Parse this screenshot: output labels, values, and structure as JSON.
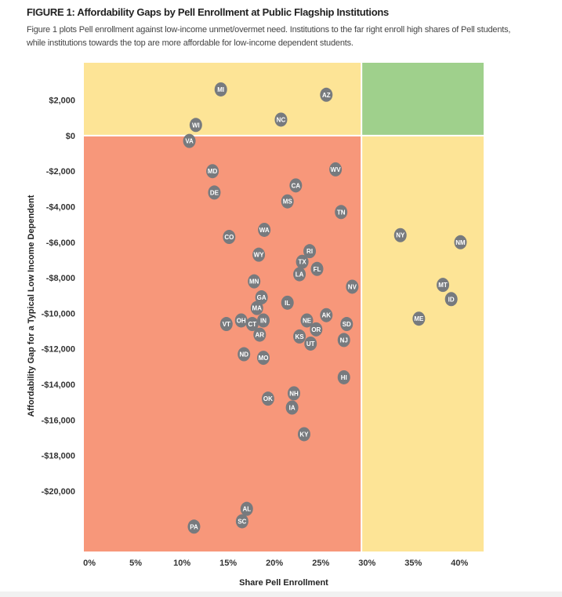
{
  "title": "FIGURE 1: Affordability Gaps by Pell Enrollment at Public Flagship Institutions",
  "subtitle": "Figure 1 plots Pell enrollment against low-income unmet/overmet need. Institutions to the far right enroll high shares of Pell students, while institutions towards the top are more affordable for low-income dependent students.",
  "chart_data": {
    "type": "scatter",
    "xlabel": "Share Pell Enrollment",
    "ylabel": "Affordability Gap for a Typical Low Income Dependent",
    "xlim": [
      -0.6,
      42.6
    ],
    "ylim": [
      -23400,
      4100
    ],
    "x_thresholds": [
      29.4
    ],
    "y_thresholds": [
      0
    ],
    "x_ticks": [
      0,
      5,
      10,
      15,
      20,
      25,
      30,
      35,
      40
    ],
    "x_tick_labels": [
      "0%",
      "5%",
      "10%",
      "15%",
      "20%",
      "25%",
      "30%",
      "35%",
      "40%"
    ],
    "y_ticks": [
      2000,
      0,
      -2000,
      -4000,
      -6000,
      -8000,
      -10000,
      -12000,
      -14000,
      -16000,
      -18000,
      -20000
    ],
    "y_tick_labels": [
      "$2,000",
      "$0",
      "-$2,000",
      "-$4,000",
      "-$6,000",
      "-$8,000",
      "-$10,000",
      "-$12,000",
      "-$14,000",
      "-$16,000",
      "-$18,000",
      "-$20,000"
    ],
    "quadrant_colors": {
      "top_left": "#fde496",
      "top_right": "#9fd08c",
      "bottom_left": "#f7977a",
      "bottom_right": "#fde496"
    },
    "point_color": "#777a7e",
    "points": [
      {
        "label": "MI",
        "x": 14.2,
        "y": 2600
      },
      {
        "label": "AZ",
        "x": 25.6,
        "y": 2300
      },
      {
        "label": "NC",
        "x": 20.7,
        "y": 900
      },
      {
        "label": "WI",
        "x": 11.5,
        "y": 600
      },
      {
        "label": "VA",
        "x": 10.8,
        "y": -300
      },
      {
        "label": "MD",
        "x": 13.3,
        "y": -2000
      },
      {
        "label": "DE",
        "x": 13.5,
        "y": -3200
      },
      {
        "label": "CA",
        "x": 22.3,
        "y": -2800
      },
      {
        "label": "MS",
        "x": 21.4,
        "y": -3700
      },
      {
        "label": "WV",
        "x": 26.6,
        "y": -1900
      },
      {
        "label": "TN",
        "x": 27.2,
        "y": -4300
      },
      {
        "label": "CO",
        "x": 15.1,
        "y": -5700
      },
      {
        "label": "WA",
        "x": 18.9,
        "y": -5300
      },
      {
        "label": "WY",
        "x": 18.3,
        "y": -6700
      },
      {
        "label": "RI",
        "x": 23.8,
        "y": -6500
      },
      {
        "label": "TX",
        "x": 23.0,
        "y": -7100
      },
      {
        "label": "FL",
        "x": 24.6,
        "y": -7500
      },
      {
        "label": "LA",
        "x": 22.7,
        "y": -7800
      },
      {
        "label": "MN",
        "x": 17.8,
        "y": -8200
      },
      {
        "label": "GA",
        "x": 18.6,
        "y": -9100
      },
      {
        "label": "IL",
        "x": 21.4,
        "y": -9400
      },
      {
        "label": "MA",
        "x": 18.1,
        "y": -9700
      },
      {
        "label": "NV",
        "x": 28.4,
        "y": -8500
      },
      {
        "label": "AK",
        "x": 25.6,
        "y": -10100
      },
      {
        "label": "NE",
        "x": 23.5,
        "y": -10400
      },
      {
        "label": "OR",
        "x": 24.5,
        "y": -10900
      },
      {
        "label": "SD",
        "x": 27.8,
        "y": -10600
      },
      {
        "label": "VT",
        "x": 14.8,
        "y": -10600
      },
      {
        "label": "OH",
        "x": 16.4,
        "y": -10400
      },
      {
        "label": "CT",
        "x": 17.6,
        "y": -10600
      },
      {
        "label": "IN",
        "x": 18.8,
        "y": -10400
      },
      {
        "label": "AR",
        "x": 18.4,
        "y": -11200
      },
      {
        "label": "KS",
        "x": 22.7,
        "y": -11300
      },
      {
        "label": "UT",
        "x": 23.9,
        "y": -11700
      },
      {
        "label": "NJ",
        "x": 27.5,
        "y": -11500
      },
      {
        "label": "ND",
        "x": 16.7,
        "y": -12300
      },
      {
        "label": "MO",
        "x": 18.8,
        "y": -12500
      },
      {
        "label": "HI",
        "x": 27.5,
        "y": -13600
      },
      {
        "label": "NH",
        "x": 22.1,
        "y": -14500
      },
      {
        "label": "OK",
        "x": 19.3,
        "y": -14800
      },
      {
        "label": "IA",
        "x": 21.9,
        "y": -15300
      },
      {
        "label": "KY",
        "x": 23.2,
        "y": -16800
      },
      {
        "label": "AL",
        "x": 17.0,
        "y": -21000
      },
      {
        "label": "SC",
        "x": 16.5,
        "y": -21700
      },
      {
        "label": "PA",
        "x": 11.3,
        "y": -22000
      },
      {
        "label": "NY",
        "x": 33.6,
        "y": -5600
      },
      {
        "label": "NM",
        "x": 40.1,
        "y": -6000
      },
      {
        "label": "MT",
        "x": 38.2,
        "y": -8400
      },
      {
        "label": "ID",
        "x": 39.1,
        "y": -9200
      },
      {
        "label": "ME",
        "x": 35.6,
        "y": -10300
      }
    ]
  }
}
